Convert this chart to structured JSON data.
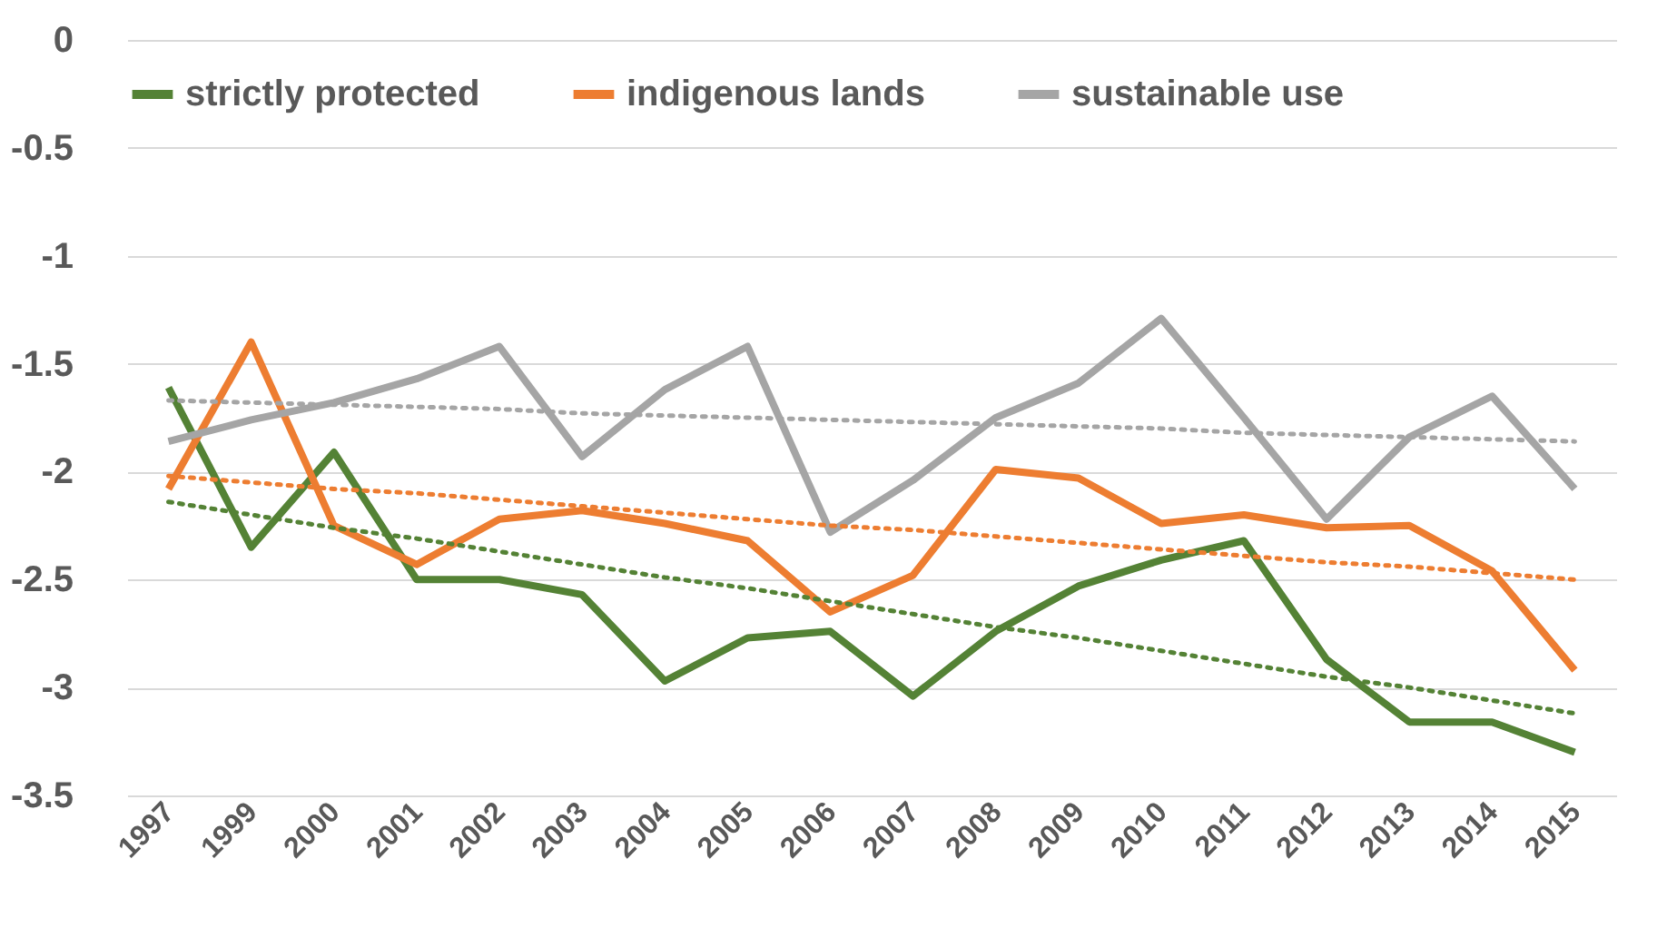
{
  "chart_data": {
    "type": "line",
    "categories": [
      "1997",
      "1999",
      "2000",
      "2001",
      "2002",
      "2003",
      "2004",
      "2005",
      "2006",
      "2007",
      "2008",
      "2009",
      "2010",
      "2011",
      "2012",
      "2013",
      "2014",
      "2015"
    ],
    "ylim": [
      -3.5,
      0
    ],
    "yticks": [
      -3.5,
      -3,
      -2.5,
      -2,
      -1.5,
      -1,
      -0.5,
      0
    ],
    "grid": "y",
    "legend": "top",
    "line_style": "solid",
    "series": [
      {
        "name": "strictly protected",
        "color": "#548235",
        "values": [
          -1.61,
          -2.35,
          -1.91,
          -2.5,
          -2.5,
          -2.57,
          -2.97,
          -2.77,
          -2.74,
          -3.04,
          -2.74,
          -2.53,
          -2.41,
          -2.32,
          -2.87,
          -3.16,
          -3.16,
          -3.3
        ]
      },
      {
        "name": "indigenous lands",
        "color": "#ed7d31",
        "values": [
          -2.08,
          -1.4,
          -2.25,
          -2.43,
          -2.22,
          -2.18,
          -2.24,
          -2.32,
          -2.65,
          -2.48,
          -1.99,
          -2.03,
          -2.24,
          -2.2,
          -2.26,
          -2.25,
          -2.46,
          -2.92
        ]
      },
      {
        "name": "sustainable use",
        "color": "#a5a5a5",
        "values": [
          -1.86,
          -1.76,
          -1.68,
          -1.57,
          -1.42,
          -1.93,
          -1.62,
          -1.42,
          -2.28,
          -2.04,
          -1.75,
          -1.59,
          -1.29,
          -1.75,
          -2.22,
          -1.84,
          -1.65,
          -2.08
        ]
      },
      {
        "type": "line",
        "line_style": "dotted",
        "color": "#548235",
        "values": [
          -2.14,
          -2.2,
          -2.26,
          -2.31,
          -2.37,
          -2.43,
          -2.49,
          -2.54,
          -2.6,
          -2.66,
          -2.72,
          -2.77,
          -2.83,
          -2.89,
          -2.95,
          -3.0,
          -3.06,
          -3.12
        ]
      },
      {
        "type": "line",
        "line_style": "dotted",
        "color": "#ed7d31",
        "values": [
          -2.02,
          -2.05,
          -2.08,
          -2.1,
          -2.13,
          -2.16,
          -2.19,
          -2.22,
          -2.25,
          -2.27,
          -2.3,
          -2.33,
          -2.36,
          -2.39,
          -2.42,
          -2.44,
          -2.47,
          -2.5
        ]
      },
      {
        "type": "line",
        "line_style": "dotted",
        "color": "#a5a5a5",
        "values": [
          -1.67,
          -1.68,
          -1.69,
          -1.7,
          -1.71,
          -1.73,
          -1.74,
          -1.75,
          -1.76,
          -1.77,
          -1.78,
          -1.79,
          -1.8,
          -1.82,
          -1.83,
          -1.84,
          -1.85,
          -1.86
        ]
      }
    ]
  }
}
